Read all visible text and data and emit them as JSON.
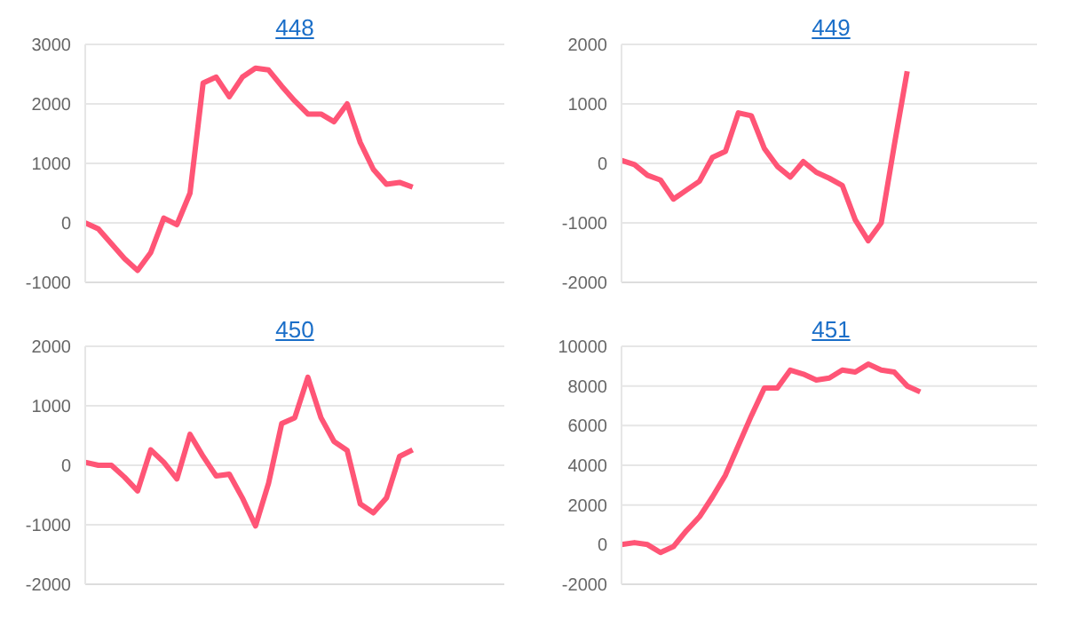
{
  "chart_data": [
    {
      "type": "line",
      "title": "448",
      "categories": [
        null,
        null,
        null,
        null,
        null,
        null,
        null,
        null,
        null,
        null,
        null,
        null,
        null,
        null,
        null,
        null,
        null,
        null,
        null,
        null,
        null,
        null,
        null,
        null,
        null,
        null,
        null,
        null,
        null,
        null,
        null,
        null,
        null
      ],
      "series": [
        {
          "color": "#ff5576",
          "values": [
            0,
            -100,
            -350,
            -600,
            -800,
            -500,
            80,
            -30,
            500,
            2350,
            2450,
            2120,
            2450,
            2600,
            2570,
            2300,
            2050,
            1830,
            1830,
            1700,
            2000,
            1350,
            900,
            650,
            680,
            600,
            null,
            null,
            null,
            null,
            null,
            null,
            null
          ]
        }
      ],
      "ylim": [
        -1000,
        3000
      ],
      "yticks": [
        -1000,
        0,
        1000,
        2000,
        3000
      ],
      "grid": "y",
      "tick_labels": "y",
      "marker": "none",
      "line_style": "solid",
      "legend": false
    },
    {
      "type": "line",
      "title": "449",
      "categories": [
        null,
        null,
        null,
        null,
        null,
        null,
        null,
        null,
        null,
        null,
        null,
        null,
        null,
        null,
        null,
        null,
        null,
        null,
        null,
        null,
        null,
        null,
        null,
        null,
        null,
        null,
        null,
        null,
        null,
        null,
        null,
        null,
        null
      ],
      "series": [
        {
          "color": "#ff5576",
          "values": [
            50,
            -20,
            -200,
            -280,
            -600,
            -450,
            -300,
            100,
            200,
            850,
            800,
            250,
            -50,
            -230,
            30,
            -150,
            -250,
            -370,
            -950,
            -1300,
            -1000,
            300,
            1550,
            null,
            null,
            null,
            null,
            null,
            null,
            null,
            null,
            null,
            null
          ]
        }
      ],
      "ylim": [
        -2000,
        2000
      ],
      "yticks": [
        -2000,
        -1000,
        0,
        1000,
        2000
      ],
      "grid": "y",
      "tick_labels": "y",
      "marker": "none",
      "line_style": "solid",
      "legend": false
    },
    {
      "type": "line",
      "title": "450",
      "categories": [
        null,
        null,
        null,
        null,
        null,
        null,
        null,
        null,
        null,
        null,
        null,
        null,
        null,
        null,
        null,
        null,
        null,
        null,
        null,
        null,
        null,
        null,
        null,
        null,
        null,
        null,
        null,
        null,
        null,
        null,
        null,
        null,
        null
      ],
      "series": [
        {
          "color": "#ff5576",
          "values": [
            50,
            0,
            0,
            -200,
            -430,
            260,
            50,
            -230,
            520,
            150,
            -180,
            -150,
            -550,
            -1020,
            -300,
            700,
            800,
            1480,
            800,
            400,
            250,
            -650,
            -800,
            -550,
            150,
            260,
            null,
            null,
            null,
            null,
            null,
            null,
            null
          ]
        }
      ],
      "ylim": [
        -2000,
        2000
      ],
      "yticks": [
        -2000,
        -1000,
        0,
        1000,
        2000
      ],
      "grid": "y",
      "tick_labels": "y",
      "marker": "none",
      "line_style": "solid",
      "legend": false
    },
    {
      "type": "line",
      "title": "451",
      "categories": [
        null,
        null,
        null,
        null,
        null,
        null,
        null,
        null,
        null,
        null,
        null,
        null,
        null,
        null,
        null,
        null,
        null,
        null,
        null,
        null,
        null,
        null,
        null,
        null,
        null,
        null,
        null,
        null,
        null,
        null,
        null,
        null,
        null
      ],
      "series": [
        {
          "color": "#ff5576",
          "values": [
            0,
            100,
            0,
            -400,
            -100,
            700,
            1400,
            2400,
            3500,
            5000,
            6500,
            7900,
            7900,
            8800,
            8600,
            8300,
            8400,
            8800,
            8700,
            9100,
            8800,
            8700,
            8000,
            7700,
            null,
            null,
            null,
            null,
            null,
            null,
            null,
            null,
            null
          ]
        }
      ],
      "ylim": [
        -2000,
        10000
      ],
      "yticks": [
        -2000,
        0,
        2000,
        4000,
        6000,
        8000,
        10000
      ],
      "grid": "y",
      "tick_labels": "y",
      "marker": "none",
      "line_style": "solid",
      "legend": false
    }
  ]
}
